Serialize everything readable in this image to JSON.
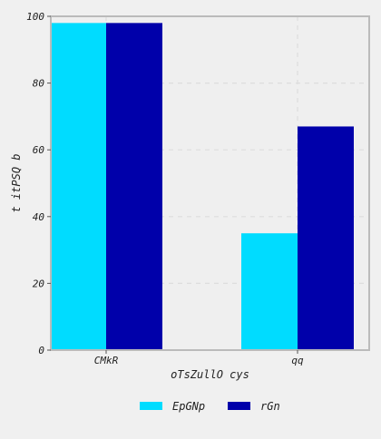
{
  "chart_data": {
    "type": "bar",
    "title": "",
    "xlabel": "oTsZullO cys",
    "ylabel": "t itPSQ b",
    "categories": [
      "CMkR",
      "qq"
    ],
    "series": [
      {
        "name": "EpGNp",
        "color": "#00dcff",
        "values": [
          98,
          35
        ]
      },
      {
        "name": "rGn",
        "color": "#0000aa",
        "values": [
          98,
          67
        ]
      }
    ],
    "ylim": [
      0,
      100
    ],
    "yticks": [
      0,
      20,
      40,
      60,
      80,
      100
    ],
    "grid": true,
    "legend_position": "bottom-center",
    "background": "#efefef",
    "frame_color": "#bbbbbb",
    "grid_color": "#dddddd"
  }
}
